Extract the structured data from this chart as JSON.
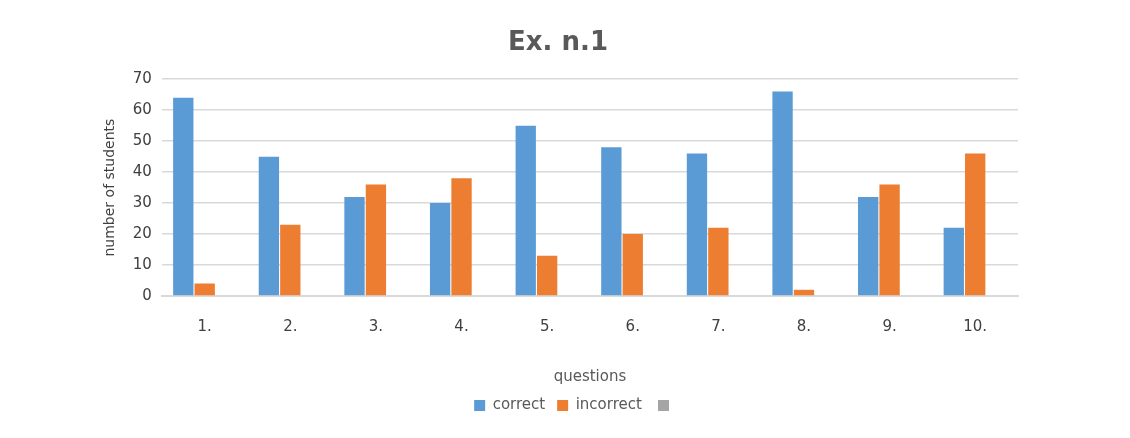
{
  "chart_data": {
    "type": "bar",
    "title": "Ex. n.1",
    "xlabel": "questions",
    "ylabel": "number of students",
    "categories": [
      "1.",
      "2.",
      "3.",
      "4.",
      "5.",
      "6.",
      "7.",
      "8.",
      "9.",
      "10."
    ],
    "series": [
      {
        "name": "correct",
        "color": "#5b9bd5",
        "values": [
          64,
          45,
          32,
          30,
          55,
          48,
          46,
          66,
          32,
          22
        ]
      },
      {
        "name": "incorrect",
        "color": "#ed7d31",
        "values": [
          4,
          23,
          36,
          38,
          13,
          20,
          22,
          2,
          36,
          46
        ]
      },
      {
        "color": "#a5a5a5",
        "values": [
          0,
          0,
          0,
          0,
          0,
          0,
          0,
          0,
          0,
          0
        ]
      }
    ],
    "ylim": [
      0,
      70
    ],
    "yticks": [
      0,
      10,
      20,
      30,
      40,
      50,
      60,
      70
    ],
    "grid": "y",
    "legend": "bottom"
  }
}
